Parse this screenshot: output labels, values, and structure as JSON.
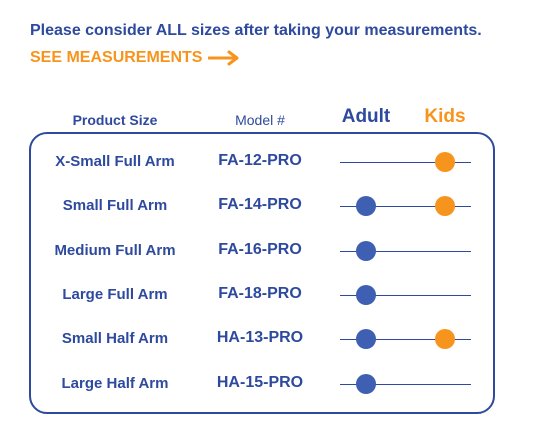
{
  "intro": {
    "text": "Please consider ALL sizes after taking your measurements.",
    "link_label": "SEE MEASUREMENTS"
  },
  "headers": {
    "product_size": "Product Size",
    "model": "Model #",
    "adult": "Adult",
    "kids": "Kids"
  },
  "colors": {
    "navy": "#2e4a9e",
    "orange": "#f7941d",
    "adult_dot": "#3f5fb3"
  },
  "icons": {
    "link_arrow": "arrow-right-icon"
  },
  "rows": [
    {
      "size": "X-Small Full Arm",
      "model": "FA-12-PRO",
      "adult": false,
      "kids": true
    },
    {
      "size": "Small Full Arm",
      "model": "FA-14-PRO",
      "adult": true,
      "kids": true
    },
    {
      "size": "Medium Full Arm",
      "model": "FA-16-PRO",
      "adult": true,
      "kids": false
    },
    {
      "size": "Large Full Arm",
      "model": "FA-18-PRO",
      "adult": true,
      "kids": false
    },
    {
      "size": "Small Half Arm",
      "model": "HA-13-PRO",
      "adult": true,
      "kids": true
    },
    {
      "size": "Large Half Arm",
      "model": "HA-15-PRO",
      "adult": true,
      "kids": false
    }
  ]
}
